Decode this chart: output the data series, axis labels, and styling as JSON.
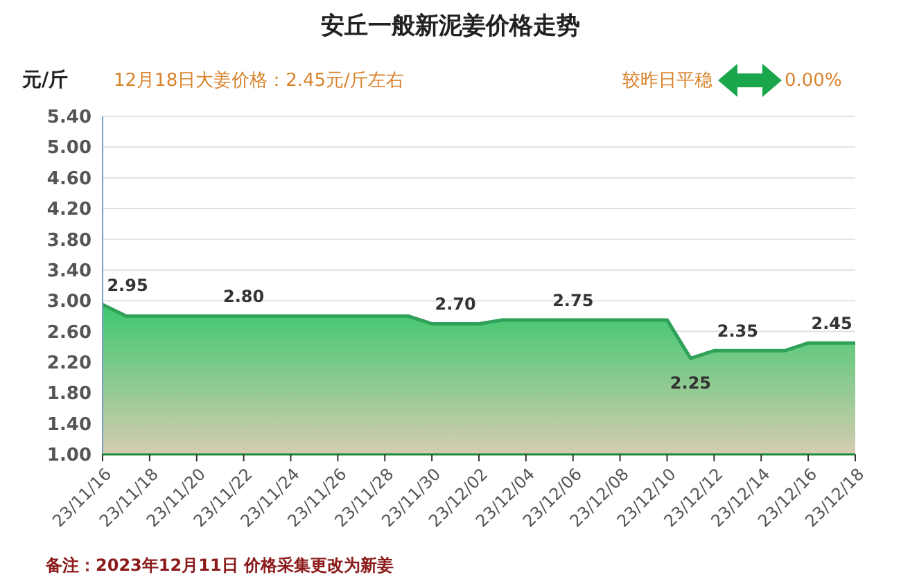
{
  "chart_data": {
    "type": "area",
    "title": "安丘一般新泥姜价格走势",
    "ylabel": "元/斤",
    "annotations": [
      "12月18日大姜价格：2.45元/斤左右",
      "较昨日平稳",
      "0.00%",
      "备注：2023年12月11日 价格采集更改为新姜"
    ],
    "x": [
      "2023-11-16",
      "2023-11-17",
      "2023-11-18",
      "2023-11-19",
      "2023-11-20",
      "2023-11-21",
      "2023-11-22",
      "2023-11-23",
      "2023-11-24",
      "2023-11-25",
      "2023-11-26",
      "2023-11-27",
      "2023-11-28",
      "2023-11-29",
      "2023-11-30",
      "2023-12-01",
      "2023-12-02",
      "2023-12-03",
      "2023-12-04",
      "2023-12-05",
      "2023-12-06",
      "2023-12-07",
      "2023-12-08",
      "2023-12-09",
      "2023-12-10",
      "2023-12-11",
      "2023-12-12",
      "2023-12-13",
      "2023-12-14",
      "2023-12-15",
      "2023-12-16",
      "2023-12-17",
      "2023-12-18"
    ],
    "series": [
      {
        "color": "#3cc86e",
        "values": [
          2.95,
          2.8,
          2.8,
          2.8,
          2.8,
          2.8,
          2.8,
          2.8,
          2.8,
          2.8,
          2.8,
          2.8,
          2.8,
          2.8,
          2.7,
          2.7,
          2.7,
          2.75,
          2.75,
          2.75,
          2.75,
          2.75,
          2.75,
          2.75,
          2.75,
          2.25,
          2.35,
          2.35,
          2.35,
          2.35,
          2.45,
          2.45,
          2.45
        ],
        "value_labels": [
          "2.95",
          null,
          null,
          null,
          null,
          null,
          "2.80",
          null,
          null,
          null,
          null,
          null,
          null,
          null,
          null,
          "2.70",
          null,
          null,
          null,
          null,
          "2.75",
          null,
          null,
          null,
          null,
          "2.25",
          null,
          "2.35",
          null,
          null,
          null,
          "2.45",
          null
        ]
      }
    ],
    "xlim": [
      "2023-11-16",
      "2023-12-18"
    ],
    "xticks": [
      {
        "value": "2023-11-16",
        "label": "23/11/16"
      },
      {
        "value": "2023-11-18",
        "label": "23/11/18"
      },
      {
        "value": "2023-11-20",
        "label": "23/11/20"
      },
      {
        "value": "2023-11-22",
        "label": "23/11/22"
      },
      {
        "value": "2023-11-24",
        "label": "23/11/24"
      },
      {
        "value": "2023-11-26",
        "label": "23/11/26"
      },
      {
        "value": "2023-11-28",
        "label": "23/11/28"
      },
      {
        "value": "2023-11-30",
        "label": "23/11/30"
      },
      {
        "value": "2023-12-02",
        "label": "23/12/02"
      },
      {
        "value": "2023-12-04",
        "label": "23/12/04"
      },
      {
        "value": "2023-12-06",
        "label": "23/12/06"
      },
      {
        "value": "2023-12-08",
        "label": "23/12/08"
      },
      {
        "value": "2023-12-10",
        "label": "23/12/10"
      },
      {
        "value": "2023-12-12",
        "label": "23/12/12"
      },
      {
        "value": "2023-12-14",
        "label": "23/12/14"
      },
      {
        "value": "2023-12-16",
        "label": "23/12/16"
      },
      {
        "value": "2023-12-18",
        "label": "23/12/18"
      }
    ],
    "ylim": [
      1,
      5.4
    ],
    "yticks": [
      {
        "value": 1,
        "label": "1.00"
      },
      {
        "value": 1.4,
        "label": "1.40"
      },
      {
        "value": 1.8,
        "label": "1.80"
      },
      {
        "value": 2.2,
        "label": "2.20"
      },
      {
        "value": 2.6,
        "label": "2.60"
      },
      {
        "value": 3,
        "label": "3.00"
      },
      {
        "value": 3.4,
        "label": "3.40"
      },
      {
        "value": 3.8,
        "label": "3.80"
      },
      {
        "value": 4.2,
        "label": "4.20"
      },
      {
        "value": 4.6,
        "label": "4.60"
      },
      {
        "value": 5,
        "label": "5.00"
      },
      {
        "value": 5.4,
        "label": "5.40"
      }
    ],
    "grid": "y",
    "marker": "none",
    "line_style": "solid"
  }
}
